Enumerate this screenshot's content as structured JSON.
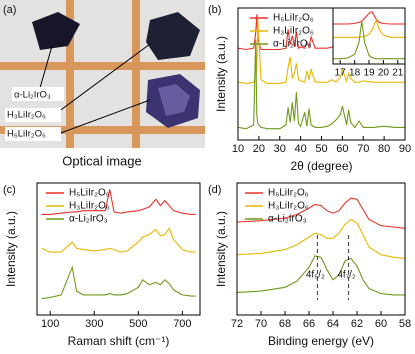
{
  "image_panel": {
    "panel": "(a)",
    "labels": [
      "α-Li₂IrO₃",
      "H₃LiIr₂O₆",
      "H₅LiIr₂O₆"
    ],
    "caption": "Optical image"
  },
  "chart_data": [
    {
      "type": "line",
      "panel": "(b)",
      "x_label": "2θ (degree)",
      "y_label": "Intensity (a.u.)",
      "x": [
        10,
        14,
        17.5,
        18.5,
        19,
        19.5,
        21,
        24,
        27,
        30,
        33,
        34,
        35,
        36,
        37,
        38,
        39,
        40,
        42,
        43,
        44,
        45,
        47,
        50,
        53,
        55,
        57,
        59,
        60,
        62,
        63,
        64,
        66,
        68,
        70,
        75,
        80,
        85,
        90
      ],
      "xlim": [
        10,
        90
      ],
      "xticks": [
        10,
        20,
        30,
        40,
        50,
        60,
        70,
        80,
        90
      ],
      "ylim": [
        0,
        10.5
      ],
      "series": [
        {
          "name": "H₅LiIr₂O₆",
          "color": "#e8322b",
          "values": [
            7.3,
            7.2,
            7.3,
            8.5,
            10,
            8.0,
            7.2,
            7.2,
            7.2,
            7.2,
            7.3,
            8.8,
            7.6,
            8.3,
            7.4,
            8.6,
            7.3,
            7.4,
            7.3,
            7.8,
            7.4,
            8.2,
            7.3,
            7.3,
            7.3,
            7.4,
            7.3,
            7.5,
            7.9,
            7.3,
            7.6,
            7.4,
            7.3,
            7.3,
            7.3,
            7.3,
            7.3,
            7.3,
            7.3
          ]
        },
        {
          "name": "H₃LiIr₂O₆",
          "color": "#e6b800",
          "values": [
            4.6,
            4.5,
            4.6,
            5.0,
            5.8,
            9.6,
            4.8,
            4.5,
            4.5,
            4.5,
            4.6,
            5.8,
            6.6,
            4.9,
            5.3,
            6.1,
            4.8,
            4.7,
            4.6,
            5.5,
            4.8,
            5.6,
            4.6,
            4.6,
            4.6,
            4.8,
            4.6,
            5.0,
            5.6,
            4.7,
            5.3,
            4.9,
            4.6,
            4.6,
            4.7,
            4.6,
            4.6,
            4.6,
            4.6
          ]
        },
        {
          "name": "α-Li₂IrO₃",
          "color": "#6f9a1c",
          "values": [
            1.0,
            0.9,
            1.2,
            8.0,
            2.0,
            1.3,
            1.0,
            0.9,
            0.9,
            0.9,
            1.2,
            2.6,
            1.4,
            3.0,
            1.5,
            3.8,
            1.3,
            1.1,
            2.2,
            1.1,
            2.5,
            1.2,
            1.0,
            1.0,
            1.1,
            1.3,
            1.6,
            2.0,
            2.7,
            1.2,
            2.4,
            1.4,
            1.0,
            1.5,
            1.0,
            1.0,
            1.1,
            1.0,
            1.0
          ]
        }
      ]
    },
    {
      "type": "line",
      "x": [
        16.5,
        17,
        17.5,
        18,
        18.3,
        18.5,
        18.7,
        19,
        19.2,
        19.5,
        19.7,
        20,
        20.5,
        21,
        21.5
      ],
      "xlim": [
        16.5,
        21.5
      ],
      "xticks": [
        17,
        18,
        19,
        20,
        21
      ],
      "ylim": [
        0,
        10.5
      ],
      "series": [
        {
          "color": "#e8322b",
          "values": [
            7.5,
            7.5,
            7.5,
            7.6,
            7.8,
            8,
            8.6,
            9.5,
            9.8,
            8.4,
            7.8,
            7.6,
            7.5,
            7.5,
            7.5
          ]
        },
        {
          "color": "#e6b800",
          "values": [
            5,
            5,
            5,
            5,
            5,
            5.1,
            5.2,
            5.6,
            6.3,
            8.2,
            6.5,
            5.4,
            5,
            5,
            5
          ]
        },
        {
          "color": "#6f9a1c",
          "values": [
            1,
            1,
            1.1,
            1.8,
            4,
            8,
            4,
            1.6,
            1.2,
            1,
            1,
            1,
            1,
            1,
            1
          ]
        }
      ]
    },
    {
      "type": "line",
      "panel": "(c)",
      "x_label": "Raman shift (cm⁻¹)",
      "y_label": "Intensity (a.u.)",
      "x": [
        60,
        100,
        150,
        200,
        220,
        250,
        300,
        350,
        370,
        390,
        420,
        450,
        500,
        520,
        550,
        580,
        600,
        620,
        640,
        660,
        700,
        740,
        760
      ],
      "xlim": [
        40,
        780
      ],
      "xticks": [
        100,
        300,
        500,
        700
      ],
      "ylim": [
        0,
        10.5
      ],
      "series": [
        {
          "name": "H₅LiIr₂O₆",
          "color": "#e8322b",
          "values": [
            8.0,
            8.0,
            8.1,
            8.2,
            8.2,
            8.3,
            8.3,
            8.3,
            10,
            8.2,
            8.1,
            8.2,
            8.3,
            8.4,
            8.6,
            9.2,
            8.7,
            9.1,
            8.7,
            8.3,
            8.1,
            8.0,
            8.0
          ]
        },
        {
          "name": "H₃LiIr₂O₆",
          "color": "#e6b800",
          "values": [
            5.3,
            5.0,
            5.0,
            5.8,
            5.3,
            5.2,
            5.1,
            5.2,
            5.3,
            5.2,
            5.0,
            5.1,
            5.8,
            6.2,
            6.4,
            6.8,
            6.3,
            6.4,
            6.9,
            6.0,
            5.2,
            5.0,
            5.0
          ]
        },
        {
          "name": "α-Li₂IrO₃",
          "color": "#6f9a1c",
          "values": [
            1.3,
            1.4,
            1.6,
            3.8,
            1.9,
            1.6,
            1.6,
            1.6,
            1.7,
            1.6,
            1.6,
            1.7,
            2.2,
            2.8,
            2.4,
            2.6,
            2.4,
            2.8,
            2.5,
            2.0,
            1.6,
            1.5,
            1.5
          ]
        }
      ]
    },
    {
      "type": "line",
      "panel": "(d)",
      "x_label": "Binding energy (eV)",
      "y_label": "Intensity (a.u.)",
      "x": [
        72,
        70,
        68,
        67,
        66,
        65.5,
        65,
        64.5,
        64,
        63.5,
        63,
        62.5,
        62,
        61.5,
        61,
        60,
        59,
        58
      ],
      "xlim": [
        72,
        58
      ],
      "xticks": [
        72,
        70,
        68,
        66,
        64,
        62,
        60,
        58
      ],
      "ylim": [
        0,
        10.5
      ],
      "series": [
        {
          "name": "H₅LiIr₂O₆",
          "color": "#e8322b",
          "values": [
            7.4,
            7.5,
            7.7,
            8.0,
            8.5,
            8.8,
            8.7,
            8.3,
            8.1,
            8.3,
            8.9,
            9.3,
            9.2,
            8.4,
            7.6,
            7.1,
            7.0,
            6.9
          ]
        },
        {
          "name": "H₃LiIr₂O₆",
          "color": "#e6b800",
          "values": [
            4.8,
            4.9,
            5.2,
            5.6,
            6.2,
            6.5,
            6.4,
            6.1,
            6.1,
            6.5,
            7.2,
            7.6,
            7.3,
            6.4,
            5.4,
            4.8,
            4.6,
            4.5
          ]
        },
        {
          "name": "α-Li₂IrO₃",
          "color": "#6f9a1c",
          "values": [
            1.8,
            1.9,
            2.2,
            2.7,
            3.8,
            4.7,
            4.6,
            3.6,
            2.8,
            3.2,
            4.3,
            4.5,
            3.9,
            2.8,
            2.1,
            1.7,
            1.6,
            1.6
          ]
        }
      ],
      "dashed_lines": [
        {
          "x": 65.3,
          "label": "4f₅/₂"
        },
        {
          "x": 62.7,
          "label": "4f₇/₂"
        }
      ]
    }
  ]
}
